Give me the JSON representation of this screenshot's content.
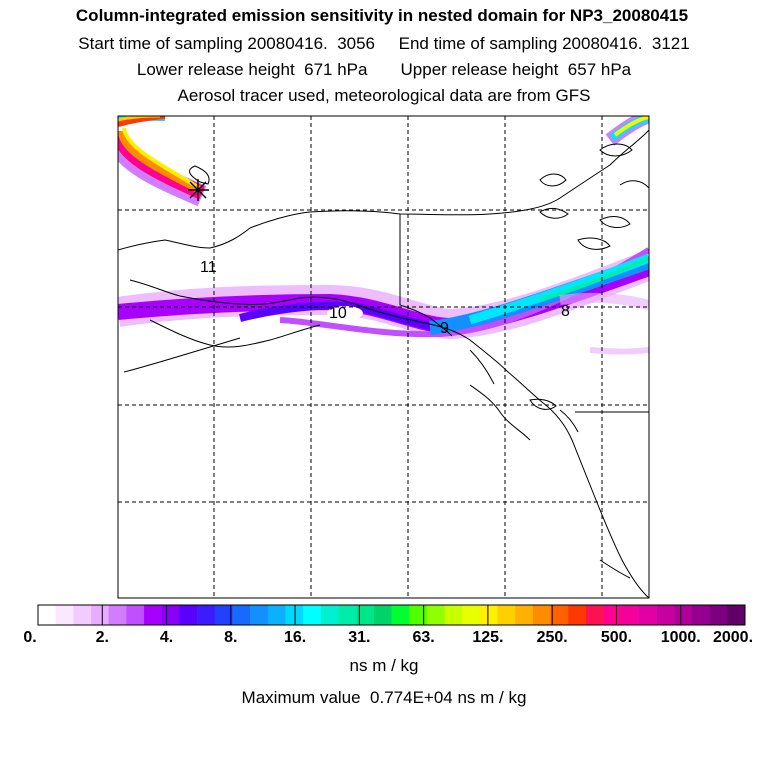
{
  "header": {
    "title": "Column-integrated emission sensitivity in nested domain for NP3_20080415",
    "line2": "Start time of sampling 20080416.  3056     End time of sampling 20080416.  3121",
    "line3": "Lower release height  671 hPa       Upper release height  657 hPa",
    "line4": "Aerosol tracer used, meteorological data are from GFS"
  },
  "map": {
    "plume_labels": [
      "11",
      "10",
      "9",
      "8"
    ],
    "release_marker": "star-icon"
  },
  "colorbar": {
    "tick_labels": [
      "0.",
      "2.",
      "4.",
      "8.",
      "16.",
      "31.",
      "63.",
      "125.",
      "250.",
      "500.",
      "1000.",
      "2000."
    ],
    "colors": [
      "#ffffff",
      "#fbe7ff",
      "#f3ccff",
      "#e8adff",
      "#d27dff",
      "#c050ff",
      "#a800ff",
      "#8800f6",
      "#5a00ff",
      "#3b1cff",
      "#2440ff",
      "#1769ff",
      "#1290ff",
      "#0cb0ff",
      "#00d8ff",
      "#00ffff",
      "#00f0d0",
      "#00ecaa",
      "#00e688",
      "#00d468",
      "#00ff30",
      "#50ff00",
      "#90ff00",
      "#c8ff00",
      "#e8ff00",
      "#ffef00",
      "#ffd000",
      "#ffb000",
      "#ff8c00",
      "#ff6000",
      "#ff3800",
      "#ff1050",
      "#ff0090",
      "#f4009c",
      "#e000a4",
      "#c800a0",
      "#b0009a",
      "#960090",
      "#7c0080",
      "#62006a"
    ],
    "units": "ns m / kg",
    "max_text": "Maximum value  0.774E+04 ns m / kg"
  }
}
